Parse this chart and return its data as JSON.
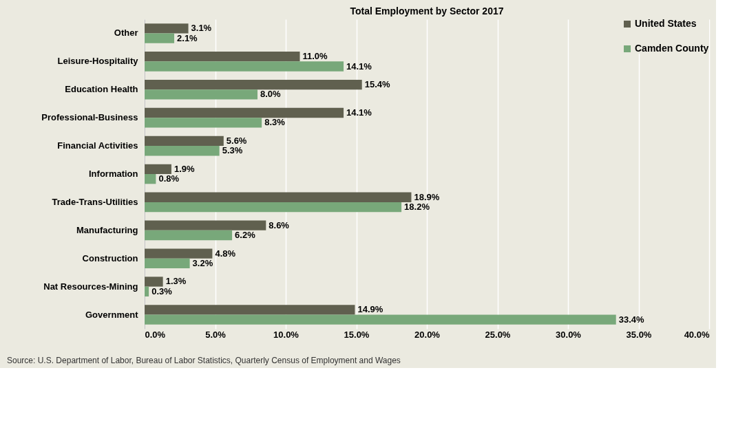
{
  "chart_data": {
    "type": "bar",
    "orientation": "horizontal",
    "title": "Total Employment by Sector  2017",
    "categories": [
      "Other",
      "Leisure-Hospitality",
      "Education Health",
      "Professional-Business",
      "Financial Activities",
      "Information",
      "Trade-Trans-Utilities",
      "Manufacturing",
      "Construction",
      "Nat Resources-Mining",
      "Government"
    ],
    "series": [
      {
        "name": "United States",
        "color": "#60604f",
        "values": [
          3.1,
          11.0,
          15.4,
          14.1,
          5.6,
          1.9,
          18.9,
          8.6,
          4.8,
          1.3,
          14.9
        ],
        "value_labels": [
          "3.1%",
          "11.0%",
          "15.4%",
          "14.1%",
          "5.6%",
          "1.9%",
          "18.9%",
          "8.6%",
          "4.8%",
          "1.3%",
          "14.9%"
        ]
      },
      {
        "name": "Camden County",
        "color": "#78a87a",
        "values": [
          2.1,
          14.1,
          8.0,
          8.3,
          5.3,
          0.8,
          18.2,
          6.2,
          3.2,
          0.3,
          33.4
        ],
        "value_labels": [
          "2.1%",
          "14.1%",
          "8.0%",
          "8.3%",
          "5.3%",
          "0.8%",
          "18.2%",
          "6.2%",
          "3.2%",
          "0.3%",
          "33.4%"
        ]
      }
    ],
    "xlim": [
      0,
      40
    ],
    "xticks": [
      {
        "value": 0,
        "label": "0.0%"
      },
      {
        "value": 5,
        "label": "5.0%"
      },
      {
        "value": 10,
        "label": "10.0%"
      },
      {
        "value": 15,
        "label": "15.0%"
      },
      {
        "value": 20,
        "label": "20.0%"
      },
      {
        "value": 25,
        "label": "25.0%"
      },
      {
        "value": 30,
        "label": "30.0%"
      },
      {
        "value": 35,
        "label": "35.0%"
      },
      {
        "value": 40,
        "label": "40.0%"
      }
    ],
    "grid": "x",
    "legend": "top right",
    "annotations": [
      "Source: U.S. Department of Labor, Bureau of Labor Statistics, Quarterly Census of Employment and Wages"
    ]
  }
}
